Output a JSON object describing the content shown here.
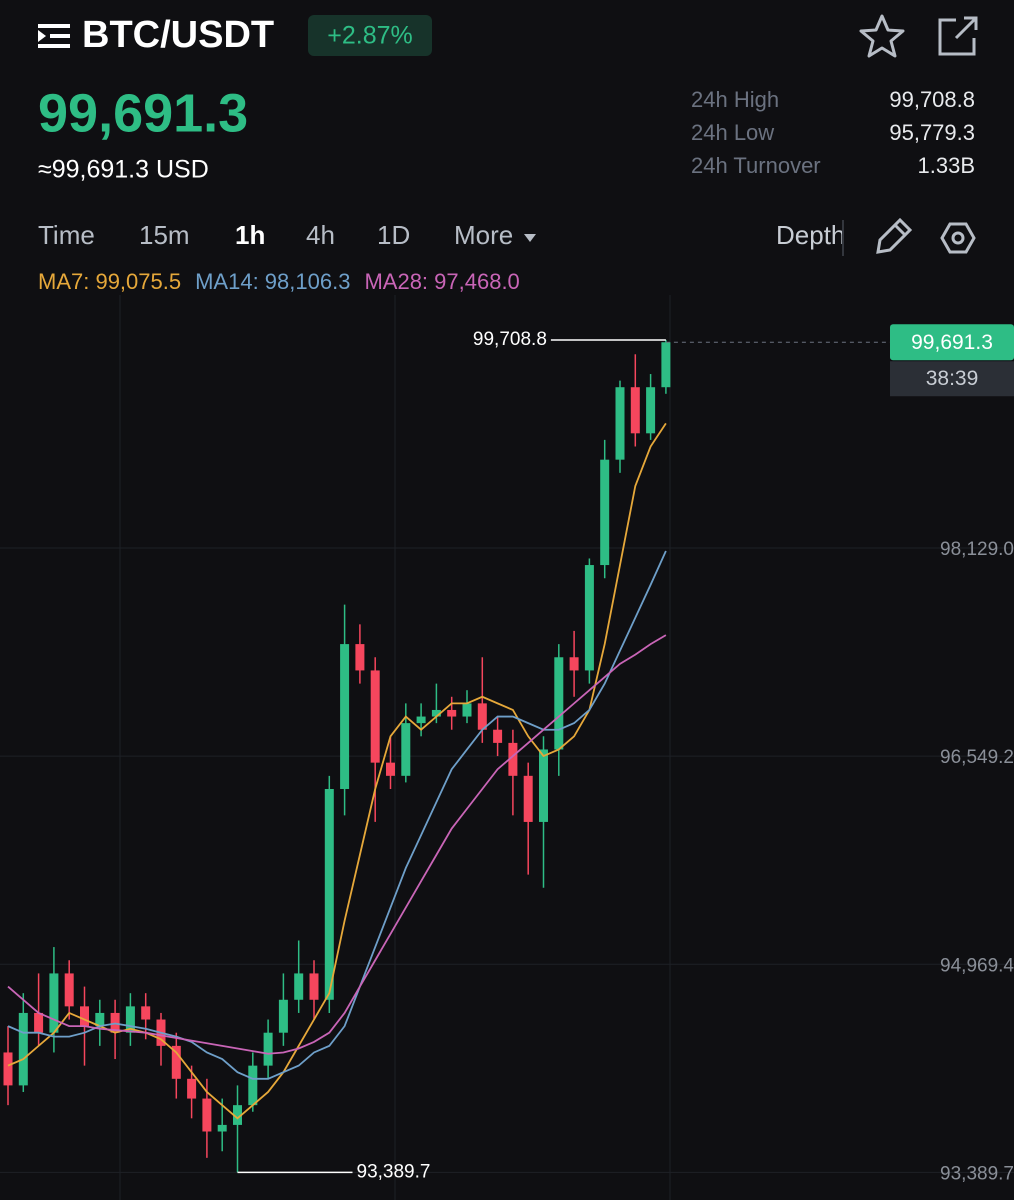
{
  "header": {
    "pair": "BTC/USDT",
    "change": "+2.87%",
    "price": "99,691.3",
    "price_usd": "≈99,691.3 USD"
  },
  "stats": [
    {
      "label": "24h High",
      "value": "99,708.8"
    },
    {
      "label": "24h Low",
      "value": "95,779.3"
    },
    {
      "label": "24h Turnover",
      "value": "1.33B"
    }
  ],
  "tabs": [
    "Time",
    "15m",
    "1h",
    "4h",
    "1D",
    "More"
  ],
  "active_tab": "1h",
  "depth": "Depth",
  "chart_data": {
    "type": "candlestick",
    "up_color": "#2ebd85",
    "down_color": "#f6465d",
    "open": [
      94300,
      94050,
      94600,
      94450,
      94900,
      94650,
      94500,
      94600,
      94450,
      94650,
      94550,
      94350,
      94100,
      93950,
      93700,
      93750,
      93900,
      94200,
      94450,
      94700,
      94900,
      94700,
      96300,
      97400,
      97200,
      96500,
      96400,
      96800,
      96850,
      96900,
      96850,
      96950,
      96750,
      96650,
      96400,
      96050,
      96600,
      97300,
      97200,
      98000,
      98800,
      99350,
      99000,
      99350
    ],
    "high": [
      94500,
      94750,
      94900,
      95100,
      95000,
      94800,
      94700,
      94700,
      94750,
      94750,
      94600,
      94450,
      94200,
      94100,
      93950,
      94050,
      94300,
      94550,
      94900,
      95150,
      95000,
      96400,
      97700,
      97550,
      97300,
      96700,
      96950,
      96950,
      97100,
      97000,
      97050,
      97300,
      96850,
      96750,
      96500,
      96700,
      97400,
      97500,
      98050,
      98950,
      99400,
      99600,
      99450,
      99708.8
    ],
    "low": [
      93900,
      94000,
      94350,
      94300,
      94550,
      94200,
      94350,
      94250,
      94350,
      94400,
      94200,
      93950,
      93800,
      93500,
      93550,
      93389.7,
      93850,
      94100,
      94350,
      94600,
      94550,
      94600,
      96100,
      97100,
      96050,
      96300,
      96350,
      96700,
      96800,
      96750,
      96800,
      96650,
      96550,
      96100,
      95650,
      95550,
      96400,
      97000,
      97100,
      97900,
      98700,
      98900,
      98950,
      99300
    ],
    "close": [
      94050,
      94600,
      94450,
      94900,
      94650,
      94500,
      94600,
      94450,
      94650,
      94550,
      94350,
      94100,
      93950,
      93700,
      93750,
      93900,
      94200,
      94450,
      94700,
      94900,
      94700,
      96300,
      97400,
      97200,
      96500,
      96400,
      96800,
      96850,
      96900,
      96850,
      96950,
      96750,
      96650,
      96400,
      96050,
      96600,
      97300,
      97200,
      98000,
      98800,
      99350,
      99000,
      99350,
      99691.3
    ],
    "moving_averages": [
      {
        "label": "MA7: 99,075.5",
        "color": "#e6a83a",
        "values": [
          94200,
          94250,
          94350,
          94450,
          94600,
          94550,
          94500,
          94450,
          94480,
          94450,
          94400,
          94300,
          94150,
          94000,
          93900,
          93800,
          93900,
          94000,
          94150,
          94350,
          94550,
          94750,
          95300,
          95800,
          96300,
          96700,
          96850,
          96750,
          96850,
          96950,
          96950,
          97000,
          96950,
          96900,
          96700,
          96550,
          96600,
          96700,
          96900,
          97400,
          98000,
          98600,
          98900,
          99075.5
        ]
      },
      {
        "label": "MA14: 98,106.3",
        "color": "#6e9fc9",
        "values": [
          94500,
          94450,
          94450,
          94420,
          94420,
          94450,
          94500,
          94520,
          94500,
          94480,
          94450,
          94420,
          94380,
          94300,
          94250,
          94150,
          94100,
          94100,
          94150,
          94200,
          94300,
          94350,
          94500,
          94800,
          95100,
          95400,
          95700,
          95950,
          96200,
          96450,
          96600,
          96750,
          96850,
          96850,
          96800,
          96750,
          96750,
          96800,
          96900,
          97100,
          97350,
          97600,
          97850,
          98106.3
        ]
      },
      {
        "label": "MA28: 97,468.0",
        "color": "#c965b7",
        "values": [
          94800,
          94700,
          94600,
          94550,
          94500,
          94500,
          94480,
          94470,
          94460,
          94450,
          94430,
          94410,
          94390,
          94370,
          94350,
          94330,
          94310,
          94290,
          94300,
          94330,
          94380,
          94450,
          94600,
          94800,
          95000,
          95200,
          95400,
          95600,
          95800,
          96000,
          96150,
          96300,
          96450,
          96550,
          96650,
          96750,
          96850,
          96950,
          97050,
          97150,
          97250,
          97320,
          97400,
          97468.0
        ]
      }
    ],
    "ylim": [
      93180,
      100050
    ],
    "yticks": [
      {
        "value": 98129.0,
        "label": "98,129.0"
      },
      {
        "value": 96549.2,
        "label": "96,549.2"
      },
      {
        "value": 94969.4,
        "label": "94,969.4"
      },
      {
        "value": 93389.7,
        "label": "93,389.7"
      }
    ],
    "grid": true,
    "last_price_label": "99,691.3",
    "countdown": "38:39",
    "extremes": [
      {
        "value": 99708.8,
        "label": "99,708.8"
      },
      {
        "value": 93389.7,
        "label": "93,389.7"
      }
    ]
  }
}
